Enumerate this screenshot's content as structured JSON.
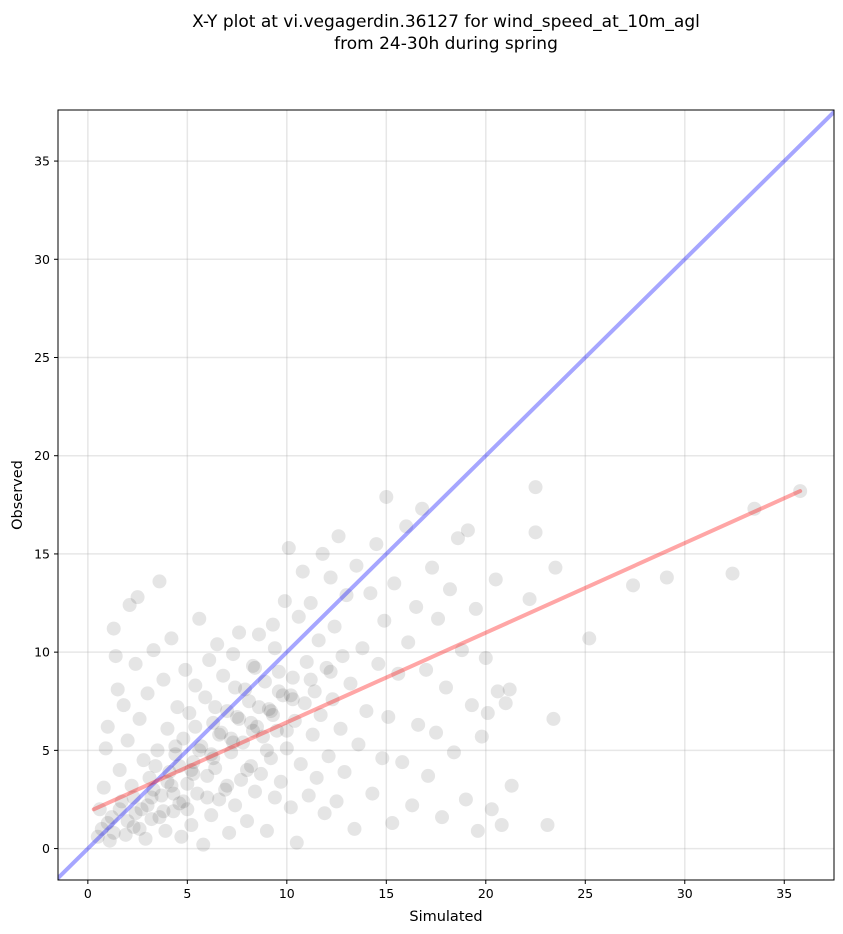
{
  "chart_data": {
    "type": "scatter",
    "title": [
      "X-Y plot at vi.vegagerdin.36127 for wind_speed_at_10m_agl",
      "from 24-30h during spring"
    ],
    "xlabel": "Simulated",
    "ylabel": "Observed",
    "xlim": [
      -1.5,
      37.5
    ],
    "ylim": [
      -1.6,
      37.6
    ],
    "xticks": [
      0,
      5,
      10,
      15,
      20,
      25,
      30,
      35
    ],
    "yticks": [
      0,
      5,
      10,
      15,
      20,
      25,
      30,
      35
    ],
    "grid": true,
    "point_color": "#000000",
    "point_alpha": 0.1,
    "series": [
      {
        "type": "scatter",
        "note_density": "dense cloud concentrated between x 0-15 and y 0-12",
        "points": [
          [
            0.5,
            0.6
          ],
          [
            0.6,
            2.0
          ],
          [
            0.8,
            3.1
          ],
          [
            0.9,
            5.1
          ],
          [
            1.0,
            6.2
          ],
          [
            1.1,
            0.4
          ],
          [
            1.2,
            1.6
          ],
          [
            1.3,
            11.2
          ],
          [
            1.4,
            9.8
          ],
          [
            1.5,
            8.1
          ],
          [
            1.6,
            4.0
          ],
          [
            1.7,
            2.4
          ],
          [
            1.8,
            7.3
          ],
          [
            1.9,
            0.7
          ],
          [
            2.0,
            5.5
          ],
          [
            2.1,
            12.4
          ],
          [
            2.2,
            3.2
          ],
          [
            2.3,
            1.1
          ],
          [
            2.4,
            9.4
          ],
          [
            2.5,
            12.8
          ],
          [
            2.6,
            6.6
          ],
          [
            2.7,
            2.0
          ],
          [
            2.8,
            4.5
          ],
          [
            2.9,
            0.5
          ],
          [
            3.0,
            7.9
          ],
          [
            3.1,
            3.6
          ],
          [
            3.2,
            1.5
          ],
          [
            3.3,
            10.1
          ],
          [
            3.5,
            5.0
          ],
          [
            3.6,
            13.6
          ],
          [
            3.7,
            2.7
          ],
          [
            3.8,
            8.6
          ],
          [
            3.9,
            0.9
          ],
          [
            4.0,
            6.1
          ],
          [
            4.1,
            3.9
          ],
          [
            4.2,
            10.7
          ],
          [
            4.3,
            1.9
          ],
          [
            4.4,
            4.8
          ],
          [
            4.5,
            7.2
          ],
          [
            4.6,
            2.3
          ],
          [
            4.7,
            0.6
          ],
          [
            4.8,
            5.6
          ],
          [
            4.9,
            9.1
          ],
          [
            5.0,
            3.3
          ],
          [
            5.1,
            6.9
          ],
          [
            5.2,
            1.2
          ],
          [
            5.3,
            4.4
          ],
          [
            5.4,
            8.3
          ],
          [
            5.5,
            2.8
          ],
          [
            5.6,
            11.7
          ],
          [
            5.7,
            5.2
          ],
          [
            5.8,
            0.2
          ],
          [
            5.9,
            7.7
          ],
          [
            6.0,
            3.7
          ],
          [
            6.1,
            9.6
          ],
          [
            6.2,
            1.7
          ],
          [
            6.3,
            6.4
          ],
          [
            6.4,
            4.1
          ],
          [
            6.5,
            10.4
          ],
          [
            6.6,
            2.5
          ],
          [
            6.7,
            5.9
          ],
          [
            6.8,
            8.8
          ],
          [
            6.9,
            3.0
          ],
          [
            7.0,
            7.0
          ],
          [
            7.1,
            0.8
          ],
          [
            7.2,
            4.9
          ],
          [
            7.3,
            9.9
          ],
          [
            7.4,
            2.2
          ],
          [
            7.5,
            6.7
          ],
          [
            7.6,
            11.0
          ],
          [
            7.7,
            3.5
          ],
          [
            7.8,
            5.4
          ],
          [
            7.9,
            8.1
          ],
          [
            8.0,
            1.4
          ],
          [
            8.1,
            7.5
          ],
          [
            8.2,
            4.2
          ],
          [
            8.3,
            9.3
          ],
          [
            8.4,
            2.9
          ],
          [
            8.5,
            6.2
          ],
          [
            8.6,
            10.9
          ],
          [
            8.7,
            3.8
          ],
          [
            8.8,
            5.7
          ],
          [
            8.9,
            8.5
          ],
          [
            9.0,
            0.9
          ],
          [
            9.1,
            7.1
          ],
          [
            9.2,
            4.6
          ],
          [
            9.3,
            11.4
          ],
          [
            9.4,
            2.6
          ],
          [
            9.5,
            6.0
          ],
          [
            9.6,
            9.0
          ],
          [
            9.7,
            3.4
          ],
          [
            9.8,
            7.8
          ],
          [
            9.9,
            12.6
          ],
          [
            10.0,
            5.1
          ],
          [
            10.1,
            15.3
          ],
          [
            10.2,
            2.1
          ],
          [
            10.3,
            8.7
          ],
          [
            10.4,
            6.5
          ],
          [
            10.5,
            0.3
          ],
          [
            10.6,
            11.8
          ],
          [
            10.7,
            4.3
          ],
          [
            10.8,
            14.1
          ],
          [
            10.9,
            7.4
          ],
          [
            11.0,
            9.5
          ],
          [
            11.1,
            2.7
          ],
          [
            11.2,
            12.5
          ],
          [
            11.3,
            5.8
          ],
          [
            11.4,
            8.0
          ],
          [
            11.5,
            3.6
          ],
          [
            11.6,
            10.6
          ],
          [
            11.7,
            6.8
          ],
          [
            11.8,
            15.0
          ],
          [
            11.9,
            1.8
          ],
          [
            12.0,
            9.2
          ],
          [
            12.1,
            4.7
          ],
          [
            12.2,
            13.8
          ],
          [
            12.3,
            7.6
          ],
          [
            12.4,
            11.3
          ],
          [
            12.5,
            2.4
          ],
          [
            12.6,
            15.9
          ],
          [
            12.7,
            6.1
          ],
          [
            12.8,
            9.8
          ],
          [
            12.9,
            3.9
          ],
          [
            13.0,
            12.9
          ],
          [
            13.2,
            8.4
          ],
          [
            13.4,
            1.0
          ],
          [
            13.5,
            14.4
          ],
          [
            13.6,
            5.3
          ],
          [
            13.8,
            10.2
          ],
          [
            14.0,
            7.0
          ],
          [
            14.2,
            13.0
          ],
          [
            14.3,
            2.8
          ],
          [
            14.5,
            15.5
          ],
          [
            14.6,
            9.4
          ],
          [
            14.8,
            4.6
          ],
          [
            14.9,
            11.6
          ],
          [
            15.0,
            17.9
          ],
          [
            15.1,
            6.7
          ],
          [
            15.3,
            1.3
          ],
          [
            15.4,
            13.5
          ],
          [
            15.6,
            8.9
          ],
          [
            15.8,
            4.4
          ],
          [
            16.0,
            16.4
          ],
          [
            16.1,
            10.5
          ],
          [
            16.3,
            2.2
          ],
          [
            16.5,
            12.3
          ],
          [
            16.6,
            6.3
          ],
          [
            16.8,
            17.3
          ],
          [
            17.0,
            9.1
          ],
          [
            17.1,
            3.7
          ],
          [
            17.3,
            14.3
          ],
          [
            17.5,
            5.9
          ],
          [
            17.6,
            11.7
          ],
          [
            17.8,
            1.6
          ],
          [
            18.0,
            8.2
          ],
          [
            18.2,
            13.2
          ],
          [
            18.4,
            4.9
          ],
          [
            18.6,
            15.8
          ],
          [
            18.8,
            10.1
          ],
          [
            19.0,
            2.5
          ],
          [
            19.1,
            16.2
          ],
          [
            19.3,
            7.3
          ],
          [
            19.5,
            12.2
          ],
          [
            19.6,
            0.9
          ],
          [
            19.8,
            5.7
          ],
          [
            20.0,
            9.7
          ],
          [
            20.1,
            6.9
          ],
          [
            20.3,
            2.0
          ],
          [
            20.5,
            13.7
          ],
          [
            20.6,
            8.0
          ],
          [
            20.8,
            1.2
          ],
          [
            21.0,
            7.4
          ],
          [
            21.2,
            8.1
          ],
          [
            21.3,
            3.2
          ],
          [
            22.2,
            12.7
          ],
          [
            22.5,
            18.4
          ],
          [
            22.5,
            16.1
          ],
          [
            23.1,
            1.2
          ],
          [
            23.4,
            6.6
          ],
          [
            23.5,
            14.3
          ],
          [
            25.2,
            10.7
          ],
          [
            27.4,
            13.4
          ],
          [
            29.1,
            13.8
          ],
          [
            32.4,
            14.0
          ],
          [
            33.5,
            17.3
          ],
          [
            35.8,
            18.2
          ],
          [
            0.7,
            1.0
          ],
          [
            1.0,
            1.3
          ],
          [
            1.3,
            0.8
          ],
          [
            1.6,
            2.0
          ],
          [
            2.0,
            1.4
          ],
          [
            2.3,
            2.6
          ],
          [
            2.6,
            1.0
          ],
          [
            3.0,
            2.2
          ],
          [
            3.3,
            3.0
          ],
          [
            3.6,
            1.6
          ],
          [
            4.0,
            3.4
          ],
          [
            4.3,
            2.8
          ],
          [
            4.6,
            4.2
          ],
          [
            5.0,
            2.0
          ],
          [
            5.3,
            3.8
          ],
          [
            5.6,
            5.0
          ],
          [
            6.0,
            2.6
          ],
          [
            6.3,
            4.6
          ],
          [
            6.6,
            5.8
          ],
          [
            7.0,
            3.2
          ],
          [
            7.3,
            5.4
          ],
          [
            7.6,
            6.6
          ],
          [
            8.0,
            4.0
          ],
          [
            8.3,
            6.0
          ],
          [
            8.6,
            7.2
          ],
          [
            9.0,
            5.0
          ],
          [
            9.3,
            6.8
          ],
          [
            9.6,
            8.0
          ],
          [
            10.0,
            6.0
          ],
          [
            10.3,
            7.6
          ],
          [
            3.4,
            4.2
          ],
          [
            4.4,
            5.2
          ],
          [
            5.4,
            6.2
          ],
          [
            6.4,
            7.2
          ],
          [
            7.4,
            8.2
          ],
          [
            8.4,
            9.2
          ],
          [
            9.4,
            10.2
          ],
          [
            3.2,
            2.6
          ],
          [
            4.2,
            3.2
          ],
          [
            5.2,
            4.0
          ],
          [
            6.2,
            4.8
          ],
          [
            7.2,
            5.6
          ],
          [
            8.2,
            6.4
          ],
          [
            9.2,
            7.0
          ],
          [
            10.2,
            7.8
          ],
          [
            11.2,
            8.6
          ],
          [
            12.2,
            9.0
          ],
          [
            2.4,
            1.8
          ],
          [
            3.8,
            1.9
          ],
          [
            4.8,
            2.4
          ]
        ]
      }
    ],
    "lines": [
      {
        "role": "one-to-one reference",
        "color": "#0000ff",
        "alpha": 0.35,
        "x": [
          -1.5,
          37.5
        ],
        "y": [
          -1.5,
          37.5
        ]
      },
      {
        "role": "linear fit",
        "color": "#ff0000",
        "alpha": 0.35,
        "x": [
          0.3,
          35.8
        ],
        "y": [
          2.0,
          18.2
        ]
      }
    ]
  }
}
